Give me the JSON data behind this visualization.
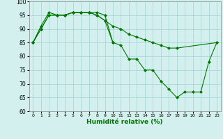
{
  "xlabel": "Humidité relative (%)",
  "xlim": [
    -0.5,
    23.5
  ],
  "ylim": [
    60,
    100
  ],
  "xticks": [
    0,
    1,
    2,
    3,
    4,
    5,
    6,
    7,
    8,
    9,
    10,
    11,
    12,
    13,
    14,
    15,
    16,
    17,
    18,
    19,
    20,
    21,
    22,
    23
  ],
  "yticks": [
    60,
    65,
    70,
    75,
    80,
    85,
    90,
    95,
    100
  ],
  "background_color": "#d4f0ee",
  "grid_color": "#a8d8d4",
  "line_color": "#007700",
  "line1_x": [
    0,
    1,
    2,
    3,
    4,
    5,
    6,
    7,
    8,
    9,
    10,
    11,
    12,
    13,
    14,
    15,
    16,
    17,
    18,
    19,
    20,
    21,
    22,
    23
  ],
  "line1_y": [
    85,
    90,
    95,
    95,
    95,
    96,
    96,
    96,
    95,
    93,
    85,
    84,
    79,
    79,
    75,
    75,
    71,
    68,
    65,
    67,
    67,
    67,
    78,
    85
  ],
  "line2_x": [
    0,
    1,
    2,
    3,
    4,
    5,
    6,
    7,
    8,
    9,
    10,
    11,
    12,
    13,
    14,
    15,
    16,
    17,
    18,
    23
  ],
  "line2_y": [
    85,
    90,
    95,
    95,
    95,
    96,
    96,
    96,
    95,
    93,
    91,
    90,
    88,
    87,
    86,
    85,
    84,
    83,
    83,
    85
  ],
  "line3_x": [
    0,
    1,
    2,
    3,
    4,
    5,
    6,
    7,
    8,
    9,
    10
  ],
  "line3_y": [
    85,
    91,
    96,
    95,
    95,
    96,
    96,
    96,
    96,
    95,
    85
  ],
  "xlabel_fontsize": 6.5,
  "xtick_fontsize": 4.5,
  "ytick_fontsize": 5.5,
  "linewidth": 0.8,
  "markersize": 2.0
}
